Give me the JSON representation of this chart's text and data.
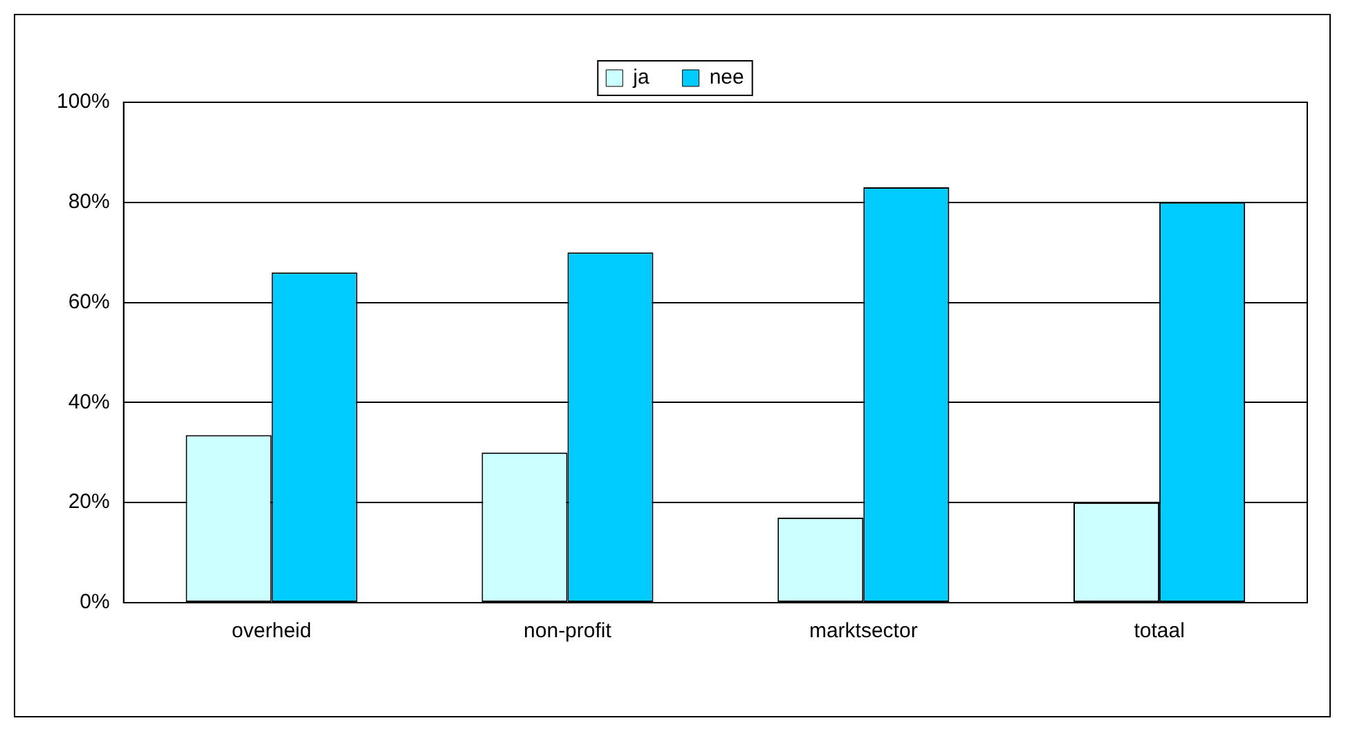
{
  "chart_data": {
    "type": "bar",
    "categories": [
      "overheid",
      "non-profit",
      "marktsector",
      "totaal"
    ],
    "series": [
      {
        "name": "ja",
        "color": "#ccffff",
        "values": [
          33.5,
          30,
          17,
          20
        ]
      },
      {
        "name": "nee",
        "color": "#00ccff",
        "values": [
          66,
          70,
          83,
          80
        ]
      }
    ],
    "ylim": [
      0,
      100
    ],
    "yticks": [
      {
        "value": 0,
        "label": "0%"
      },
      {
        "value": 20,
        "label": "20%"
      },
      {
        "value": 40,
        "label": "40%"
      },
      {
        "value": 60,
        "label": "60%"
      },
      {
        "value": 80,
        "label": "80%"
      },
      {
        "value": 100,
        "label": "100%"
      }
    ],
    "grid": "y",
    "legend": "top"
  }
}
